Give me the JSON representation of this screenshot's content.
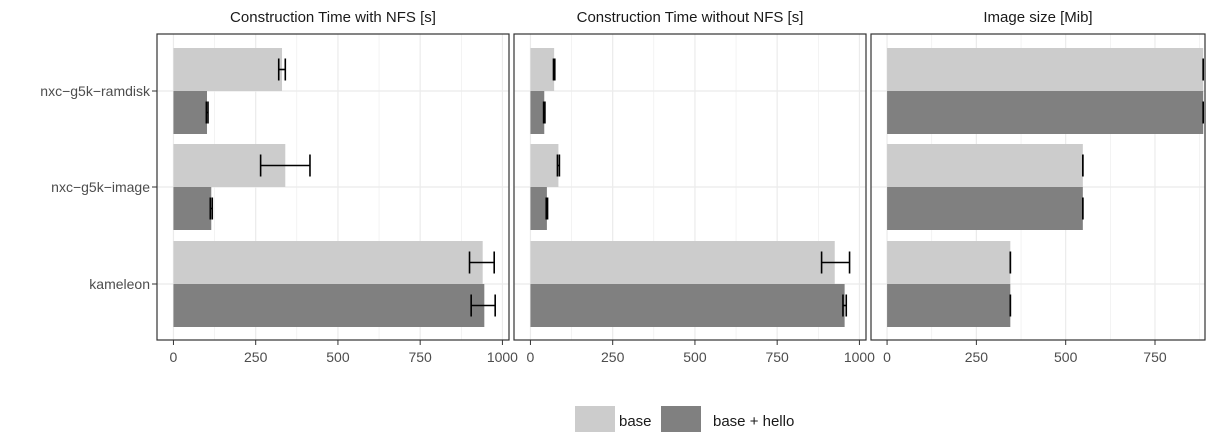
{
  "colors": {
    "base": "#cccccc",
    "base_hello": "#808080",
    "panel_bg": "#ffffff",
    "grid": "#ebebeb",
    "border": "#333333",
    "error_bar": "#000000"
  },
  "legend": {
    "position": "bottom",
    "items": [
      {
        "key": "base",
        "label": "base"
      },
      {
        "key": "base_hello",
        "label": "base + hello"
      }
    ]
  },
  "chart_data": [
    {
      "type": "bar",
      "orientation": "horizontal",
      "title": "Construction Time with NFS [s]",
      "categories": [
        "nxc−g5k−ramdisk",
        "nxc−g5k−image",
        "kameleon"
      ],
      "xlim": [
        -50,
        1020
      ],
      "xticks": [
        0,
        250,
        500,
        750,
        1000
      ],
      "xtick_labels": [
        "0",
        "250",
        "500",
        "750",
        "1000"
      ],
      "grid": true,
      "series": [
        {
          "name": "base",
          "values": [
            330,
            340,
            940
          ],
          "error_low": [
            320,
            265,
            900
          ],
          "error_high": [
            340,
            415,
            975
          ]
        },
        {
          "name": "base + hello",
          "values": [
            102,
            115,
            945
          ],
          "error_low": [
            100,
            112,
            905
          ],
          "error_high": [
            105,
            118,
            978
          ]
        }
      ]
    },
    {
      "type": "bar",
      "orientation": "horizontal",
      "title": "Construction Time without NFS [s]",
      "categories": [
        "nxc−g5k−ramdisk",
        "nxc−g5k−image",
        "kameleon"
      ],
      "xlim": [
        -50,
        1020
      ],
      "xticks": [
        0,
        250,
        500,
        750,
        1000
      ],
      "xtick_labels": [
        "0",
        "250",
        "500",
        "750",
        "1000"
      ],
      "grid": true,
      "series": [
        {
          "name": "base",
          "values": [
            72,
            85,
            925
          ],
          "error_low": [
            70,
            82,
            885
          ],
          "error_high": [
            74,
            88,
            970
          ]
        },
        {
          "name": "base + hello",
          "values": [
            42,
            50,
            955
          ],
          "error_low": [
            40,
            48,
            950
          ],
          "error_high": [
            44,
            52,
            960
          ]
        }
      ]
    },
    {
      "type": "bar",
      "orientation": "horizontal",
      "title": "Image size [Mib]",
      "categories": [
        "nxc−g5k−ramdisk",
        "nxc−g5k−image",
        "kameleon"
      ],
      "xlim": [
        -45,
        890
      ],
      "xticks": [
        0,
        250,
        500,
        750
      ],
      "xtick_labels": [
        "0",
        "250",
        "500",
        "750"
      ],
      "grid": true,
      "series": [
        {
          "name": "base",
          "values": [
            885,
            548,
            345
          ],
          "error_low": [
            885,
            548,
            345
          ],
          "error_high": [
            885,
            548,
            345
          ]
        },
        {
          "name": "base + hello",
          "values": [
            885,
            548,
            345
          ],
          "error_low": [
            885,
            548,
            345
          ],
          "error_high": [
            885,
            548,
            345
          ]
        }
      ]
    }
  ]
}
